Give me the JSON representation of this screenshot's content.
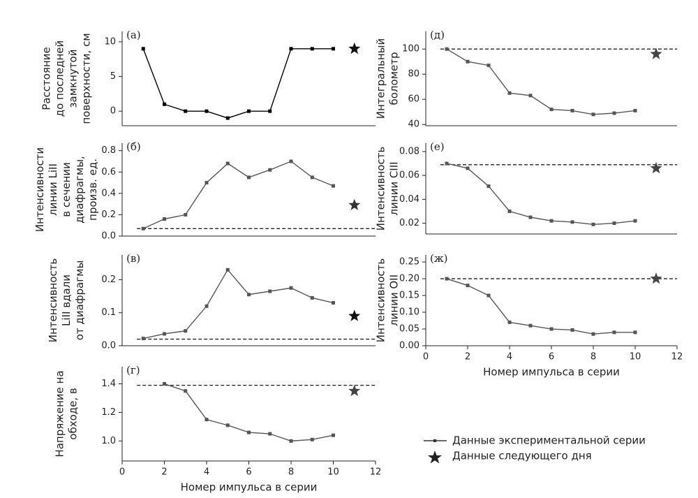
{
  "chart_data": [
    {
      "type": "line",
      "panel_label": "(а)",
      "ylabel": [
        "Расстояние",
        "до последней",
        "замкнутой",
        "поверхности, см"
      ],
      "x": [
        1,
        2,
        3,
        4,
        5,
        6,
        7,
        8,
        9,
        10
      ],
      "series": [
        {
          "color": "#000000",
          "values": [
            9,
            1,
            0,
            0,
            -1,
            0,
            0,
            9,
            9,
            9
          ]
        }
      ],
      "marker": {
        "x": 11,
        "y": 9,
        "color": "#111111"
      },
      "xlim": [
        0,
        12
      ],
      "ylim": [
        -2.1,
        11.5
      ],
      "yticks": [
        0,
        5,
        10
      ]
    },
    {
      "type": "line",
      "panel_label": "(б)",
      "ylabel": [
        "Интенсивности",
        "линии LiII",
        "в сечении",
        "диафрагмы,",
        "произв. ед."
      ],
      "x": [
        1,
        2,
        3,
        4,
        5,
        6,
        7,
        8,
        9,
        10
      ],
      "series": [
        {
          "color": "#555555",
          "values": [
            0.07,
            0.16,
            0.2,
            0.5,
            0.68,
            0.55,
            0.62,
            0.7,
            0.55,
            0.47
          ]
        }
      ],
      "reference": 0.07,
      "marker": {
        "x": 11,
        "y": 0.29,
        "color": "#333333"
      },
      "xlim": [
        0,
        12
      ],
      "ylim": [
        0,
        0.87
      ],
      "yticks": [
        {
          "value": 0,
          "label": "0.0"
        },
        0.2,
        0.4,
        0.6,
        0.8
      ]
    },
    {
      "type": "line",
      "panel_label": "(в)",
      "ylabel": [
        "Интенсивность",
        "LiII вдали",
        "от диафрагмы"
      ],
      "x": [
        1,
        2,
        3,
        4,
        5,
        6,
        7,
        8,
        9,
        10
      ],
      "series": [
        {
          "color": "#555555",
          "values": [
            0.022,
            0.036,
            0.045,
            0.12,
            0.23,
            0.155,
            0.165,
            0.175,
            0.145,
            0.13
          ]
        }
      ],
      "reference": 0.02,
      "marker": {
        "x": 11,
        "y": 0.09,
        "color": "#111111"
      },
      "xlim": [
        0,
        12
      ],
      "ylim": [
        0,
        0.275
      ],
      "yticks": [
        {
          "value": 0,
          "label": "0.0"
        },
        0.1,
        0.2
      ]
    },
    {
      "type": "line",
      "panel_label": "(г)",
      "ylabel": [
        "Напряжение на",
        "обходе, в"
      ],
      "x": [
        2,
        3,
        4,
        5,
        6,
        7,
        8,
        9,
        10
      ],
      "series": [
        {
          "color": "#555555",
          "values": [
            1.4,
            1.35,
            1.15,
            1.11,
            1.06,
            1.05,
            1.0,
            1.01,
            1.04
          ]
        }
      ],
      "reference": 1.39,
      "marker": {
        "x": 11,
        "y": 1.35,
        "color": "#444444"
      },
      "xlim": [
        0,
        12
      ],
      "ylim": [
        0.86,
        1.52
      ],
      "yticks": [
        {
          "value": 1,
          "label": "1.0"
        },
        1.2,
        1.4
      ],
      "xticks": [
        0,
        2,
        4,
        6,
        8,
        10,
        12
      ],
      "xlabel": "Номер импульса в серии"
    },
    {
      "type": "line",
      "panel_label": "(д)",
      "ylabel": [
        "Интегральный",
        "болометр"
      ],
      "x": [
        1,
        2,
        3,
        4,
        5,
        6,
        7,
        8,
        9,
        10
      ],
      "series": [
        {
          "color": "#555555",
          "values": [
            100,
            90,
            87,
            65,
            63,
            52,
            51,
            48,
            49,
            51
          ]
        }
      ],
      "reference": 100,
      "marker": {
        "x": 11,
        "y": 96,
        "color": "#444444"
      },
      "xlim": [
        0,
        12
      ],
      "ylim": [
        39,
        114
      ],
      "yticks": [
        40,
        60,
        80,
        100
      ]
    },
    {
      "type": "line",
      "panel_label": "(е)",
      "ylabel": [
        "Интенсивность",
        "линии CIII"
      ],
      "x": [
        1,
        2,
        3,
        4,
        5,
        6,
        7,
        8,
        9,
        10
      ],
      "series": [
        {
          "color": "#555555",
          "values": [
            0.07,
            0.066,
            0.051,
            0.03,
            0.025,
            0.022,
            0.021,
            0.019,
            0.02,
            0.022
          ]
        }
      ],
      "reference": 0.069,
      "marker": {
        "x": 11,
        "y": 0.066,
        "color": "#444444"
      },
      "xlim": [
        0,
        12
      ],
      "ylim": [
        0.011,
        0.087
      ],
      "yticks": [
        0.02,
        0.04,
        0.06,
        0.08
      ]
    },
    {
      "type": "line",
      "panel_label": "(ж)",
      "ylabel": [
        "Интенсивность",
        "линии OII"
      ],
      "x": [
        1,
        2,
        3,
        4,
        5,
        6,
        7,
        8,
        9,
        10
      ],
      "series": [
        {
          "color": "#555555",
          "values": [
            0.2,
            0.18,
            0.15,
            0.07,
            0.06,
            0.05,
            0.047,
            0.035,
            0.04,
            0.04
          ]
        }
      ],
      "reference": 0.2,
      "marker": {
        "x": 11,
        "y": 0.2,
        "color": "#444444"
      },
      "xlim": [
        0,
        12
      ],
      "ylim": [
        0,
        0.271
      ],
      "yticks": [
        {
          "value": 0,
          "label": "0.00"
        },
        0.05,
        {
          "value": 0.1,
          "label": "0.10"
        },
        0.15,
        {
          "value": 0.2,
          "label": "0.20"
        },
        0.25
      ],
      "xticks": [
        0,
        2,
        4,
        6,
        8,
        10,
        12
      ],
      "xlabel": "Номер импульса в серии"
    }
  ],
  "legend": {
    "series": "Данные экспериментальной серии",
    "marker": "Данные следующего дня"
  }
}
